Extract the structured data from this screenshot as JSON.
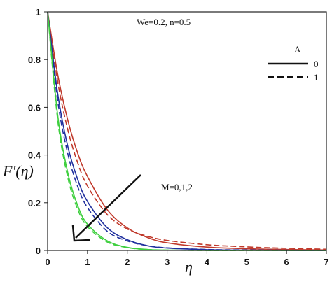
{
  "chart_data": {
    "type": "line",
    "title": "",
    "xlabel": "η",
    "ylabel": "F′(η)",
    "xlim": [
      0,
      7
    ],
    "ylim": [
      0,
      1
    ],
    "grid": false,
    "xticks": [
      "0",
      "1",
      "2",
      "3",
      "4",
      "5",
      "6",
      "7"
    ],
    "yticks": [
      "0",
      "0.2",
      "0.4",
      "0.6",
      "0.8",
      "1"
    ],
    "annotation_params": "We=0.2, n=0.5",
    "annotation_m": "M=0,1,2",
    "legend": {
      "position": "top-right",
      "title": "A",
      "entries": [
        {
          "label": "0",
          "style": "solid"
        },
        {
          "label": "1",
          "style": "dashed"
        }
      ]
    },
    "series": [
      {
        "M": 0,
        "A": 0,
        "color": "#c0392b",
        "style": "solid",
        "x": [
          0,
          0.25,
          0.5,
          0.75,
          1.0,
          1.5,
          2.0,
          2.5,
          3.0,
          4.0,
          5.0,
          6.0,
          7.0
        ],
        "y": [
          1.0,
          0.74,
          0.55,
          0.41,
          0.31,
          0.17,
          0.095,
          0.055,
          0.032,
          0.014,
          0.007,
          0.004,
          0.002
        ]
      },
      {
        "M": 0,
        "A": 1,
        "color": "#c0392b",
        "style": "dashed",
        "x": [
          0,
          0.25,
          0.5,
          0.75,
          1.0,
          1.5,
          2.0,
          2.5,
          3.0,
          4.0,
          5.0,
          6.0,
          7.0
        ],
        "y": [
          1.0,
          0.71,
          0.51,
          0.37,
          0.27,
          0.15,
          0.09,
          0.06,
          0.042,
          0.024,
          0.015,
          0.009,
          0.005
        ]
      },
      {
        "M": 1,
        "A": 0,
        "color": "#1f2f9e",
        "style": "solid",
        "x": [
          0,
          0.25,
          0.5,
          0.75,
          1.0,
          1.5,
          2.0,
          2.5,
          3.0,
          4.0,
          5.0,
          6.0,
          7.0
        ],
        "y": [
          1.0,
          0.66,
          0.44,
          0.3,
          0.205,
          0.095,
          0.045,
          0.02,
          0.01,
          0.003,
          0.001,
          0.0,
          0.0
        ]
      },
      {
        "M": 1,
        "A": 1,
        "color": "#1f2f9e",
        "style": "dashed",
        "x": [
          0,
          0.25,
          0.5,
          0.75,
          1.0,
          1.5,
          2.0,
          2.5,
          3.0,
          4.0,
          5.0,
          6.0,
          7.0
        ],
        "y": [
          1.0,
          0.63,
          0.41,
          0.27,
          0.18,
          0.08,
          0.04,
          0.02,
          0.011,
          0.004,
          0.002,
          0.001,
          0.0
        ]
      },
      {
        "M": 2,
        "A": 0,
        "color": "#3ecf3e",
        "style": "solid",
        "x": [
          0,
          0.25,
          0.5,
          0.75,
          1.0,
          1.5,
          2.0,
          2.5,
          3.0,
          4.0,
          5.0,
          6.0,
          7.0
        ],
        "y": [
          1.0,
          0.57,
          0.33,
          0.19,
          0.11,
          0.04,
          0.013,
          0.004,
          0.0015,
          0.0,
          0.0,
          0.0,
          0.0
        ]
      },
      {
        "M": 2,
        "A": 1,
        "color": "#3ecf3e",
        "style": "dashed",
        "x": [
          0,
          0.25,
          0.5,
          0.75,
          1.0,
          1.5,
          2.0,
          2.5,
          3.0,
          4.0,
          5.0,
          6.0,
          7.0
        ],
        "y": [
          1.0,
          0.55,
          0.31,
          0.175,
          0.1,
          0.035,
          0.012,
          0.004,
          0.0014,
          0.0,
          0.0,
          0.0,
          0.0
        ]
      }
    ]
  }
}
